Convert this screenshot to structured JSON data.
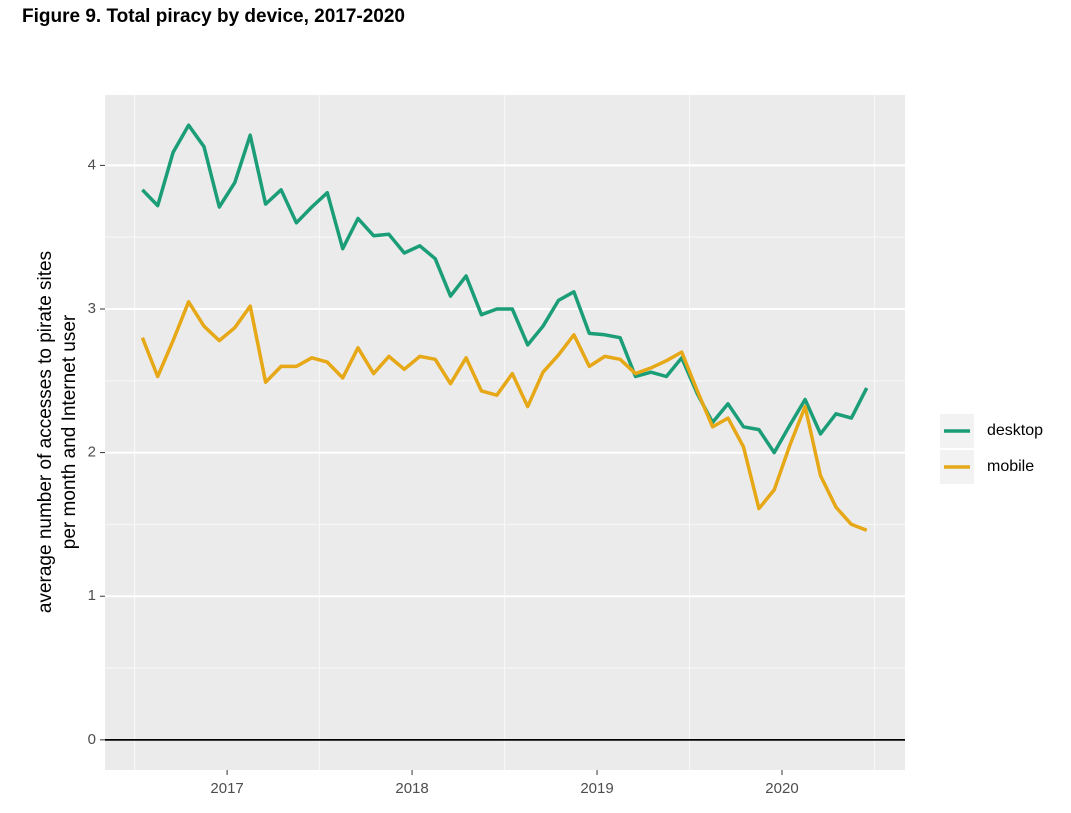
{
  "chart_data": {
    "type": "line",
    "title": "Figure 9. Total piracy by device, 2017-2020",
    "ylabel": [
      "average number of accesses to pirate sites",
      "per month and Internet user"
    ],
    "x": [
      2016.542,
      2016.625,
      2016.708,
      2016.792,
      2016.875,
      2016.958,
      2017.042,
      2017.125,
      2017.208,
      2017.292,
      2017.375,
      2017.458,
      2017.542,
      2017.625,
      2017.708,
      2017.792,
      2017.875,
      2017.958,
      2018.042,
      2018.125,
      2018.208,
      2018.292,
      2018.375,
      2018.458,
      2018.542,
      2018.625,
      2018.708,
      2018.792,
      2018.875,
      2018.958,
      2019.042,
      2019.125,
      2019.208,
      2019.292,
      2019.375,
      2019.458,
      2019.542,
      2019.625,
      2019.708,
      2019.792,
      2019.875,
      2019.958,
      2020.042,
      2020.125,
      2020.208,
      2020.292,
      2020.375,
      2020.458
    ],
    "series": [
      {
        "name": "desktop",
        "color": "#1b9e77",
        "values": [
          3.83,
          3.72,
          4.09,
          4.28,
          4.13,
          3.71,
          3.88,
          4.21,
          3.73,
          3.83,
          3.6,
          3.71,
          3.81,
          3.42,
          3.63,
          3.51,
          3.52,
          3.39,
          3.44,
          3.35,
          3.09,
          3.23,
          2.96,
          3.0,
          3.0,
          2.75,
          2.88,
          3.06,
          3.12,
          2.83,
          2.82,
          2.8,
          2.53,
          2.56,
          2.53,
          2.66,
          2.41,
          2.21,
          2.34,
          2.18,
          2.16,
          2.0,
          2.19,
          2.37,
          2.13,
          2.27,
          2.24,
          2.45
        ]
      },
      {
        "name": "mobile",
        "color": "#e6a817",
        "values": [
          2.8,
          2.53,
          2.78,
          3.05,
          2.88,
          2.78,
          2.87,
          3.02,
          2.49,
          2.6,
          2.6,
          2.66,
          2.63,
          2.52,
          2.73,
          2.55,
          2.67,
          2.58,
          2.67,
          2.65,
          2.48,
          2.66,
          2.43,
          2.4,
          2.55,
          2.32,
          2.56,
          2.68,
          2.82,
          2.6,
          2.67,
          2.65,
          2.55,
          2.59,
          2.64,
          2.7,
          2.43,
          2.18,
          2.24,
          2.04,
          1.61,
          1.74,
          2.05,
          2.32,
          1.84,
          1.62,
          1.5,
          1.46
        ]
      }
    ],
    "xlim": [
      2016.34,
      2020.665
    ],
    "xticks": [
      2017,
      2018,
      2019,
      2020
    ],
    "ylim": [
      -0.21,
      4.49
    ],
    "yticks": [
      0,
      1,
      2,
      3,
      4
    ],
    "hline": 0,
    "grid": true,
    "legend": "right"
  }
}
